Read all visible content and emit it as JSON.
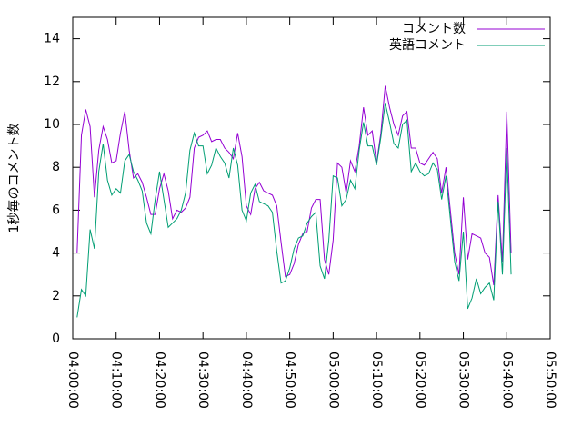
{
  "chart_data": {
    "type": "line",
    "y_label": "1秒毎のコメント数",
    "x": [
      "04:01:00",
      "04:02:00",
      "04:03:00",
      "04:04:00",
      "04:05:00",
      "04:06:00",
      "04:07:00",
      "04:08:00",
      "04:09:00",
      "04:10:00",
      "04:11:00",
      "04:12:00",
      "04:13:00",
      "04:14:00",
      "04:15:00",
      "04:16:00",
      "04:17:00",
      "04:18:00",
      "04:19:00",
      "04:20:00",
      "04:21:00",
      "04:22:00",
      "04:23:00",
      "04:24:00",
      "04:25:00",
      "04:26:00",
      "04:27:00",
      "04:28:00",
      "04:29:00",
      "04:30:00",
      "04:31:00",
      "04:32:00",
      "04:33:00",
      "04:34:00",
      "04:35:00",
      "04:36:00",
      "04:37:00",
      "04:38:00",
      "04:39:00",
      "04:40:00",
      "04:41:00",
      "04:42:00",
      "04:43:00",
      "04:44:00",
      "04:45:00",
      "04:46:00",
      "04:47:00",
      "04:48:00",
      "04:49:00",
      "04:50:00",
      "04:51:00",
      "04:52:00",
      "04:53:00",
      "04:54:00",
      "04:55:00",
      "04:56:00",
      "04:57:00",
      "04:58:00",
      "04:59:00",
      "05:00:00",
      "05:01:00",
      "05:02:00",
      "05:03:00",
      "05:04:00",
      "05:05:00",
      "05:06:00",
      "05:07:00",
      "05:08:00",
      "05:09:00",
      "05:10:00",
      "05:11:00",
      "05:12:00",
      "05:13:00",
      "05:14:00",
      "05:15:00",
      "05:16:00",
      "05:17:00",
      "05:18:00",
      "05:19:00",
      "05:20:00",
      "05:21:00",
      "05:22:00",
      "05:23:00",
      "05:24:00",
      "05:25:00",
      "05:26:00",
      "05:27:00",
      "05:28:00",
      "05:29:00",
      "05:30:00",
      "05:31:00",
      "05:32:00",
      "05:33:00",
      "05:34:00",
      "05:35:00",
      "05:36:00",
      "05:37:00",
      "05:38:00",
      "05:39:00",
      "05:40:00",
      "05:41:00"
    ],
    "series": [
      {
        "name": "コメント数",
        "color": "#9400d3",
        "values": [
          4.0,
          9.5,
          10.7,
          9.9,
          6.6,
          8.8,
          9.9,
          9.3,
          8.2,
          8.3,
          9.6,
          10.6,
          8.8,
          7.5,
          7.7,
          7.3,
          6.6,
          5.8,
          5.8,
          7.0,
          7.7,
          6.9,
          5.6,
          6.0,
          5.9,
          6.1,
          6.6,
          8.9,
          9.4,
          9.5,
          9.7,
          9.2,
          9.3,
          9.3,
          8.9,
          8.7,
          8.4,
          9.6,
          8.5,
          6.2,
          5.8,
          7.0,
          7.3,
          6.9,
          6.8,
          6.7,
          6.2,
          4.5,
          2.9,
          3.0,
          3.5,
          4.4,
          4.9,
          5.0,
          6.1,
          6.5,
          6.5,
          3.7,
          3.0,
          4.6,
          8.2,
          8.0,
          6.8,
          8.3,
          7.8,
          9.0,
          10.8,
          9.5,
          9.7,
          8.2,
          9.6,
          11.8,
          10.8,
          10.0,
          9.5,
          10.4,
          10.6,
          8.9,
          8.9,
          8.2,
          8.1,
          8.4,
          8.7,
          8.4,
          6.8,
          8.0,
          6.0,
          4.0,
          3.0,
          6.6,
          3.7,
          4.9,
          4.8,
          4.7,
          4.0,
          3.8,
          2.5,
          6.7,
          3.6,
          10.6,
          4.0
        ]
      },
      {
        "name": "英語コメント",
        "color": "#009e73",
        "values": [
          1.0,
          2.3,
          2.0,
          5.1,
          4.2,
          7.8,
          9.1,
          7.4,
          6.7,
          7.0,
          6.8,
          8.3,
          8.6,
          7.8,
          7.4,
          6.9,
          5.4,
          4.9,
          6.5,
          7.8,
          6.5,
          5.2,
          5.4,
          5.6,
          6.0,
          6.8,
          8.8,
          9.6,
          9.0,
          9.0,
          7.7,
          8.1,
          8.9,
          8.5,
          8.2,
          7.5,
          8.9,
          8.1,
          6.0,
          5.5,
          6.8,
          7.2,
          6.4,
          6.3,
          6.2,
          5.9,
          4.1,
          2.6,
          2.7,
          3.3,
          4.2,
          4.7,
          4.8,
          5.4,
          5.7,
          5.9,
          3.4,
          2.8,
          4.6,
          7.6,
          7.5,
          6.2,
          6.5,
          7.4,
          7.0,
          8.8,
          10.1,
          9.0,
          9.0,
          8.1,
          9.4,
          11.0,
          10.1,
          9.1,
          8.9,
          10.0,
          10.2,
          7.8,
          8.2,
          7.8,
          7.6,
          7.7,
          8.2,
          7.9,
          6.5,
          7.6,
          5.6,
          3.6,
          2.7,
          5.0,
          1.4,
          1.9,
          2.8,
          2.1,
          2.4,
          2.6,
          1.8,
          6.4,
          3.0,
          8.9,
          3.0
        ]
      }
    ],
    "xlim": [
      "04:00:00",
      "05:50:00"
    ],
    "xticks": [
      "04:00:00",
      "04:10:00",
      "04:20:00",
      "04:30:00",
      "04:40:00",
      "04:50:00",
      "05:00:00",
      "05:10:00",
      "05:20:00",
      "05:30:00",
      "05:40:00",
      "05:50:00"
    ],
    "ylim": [
      0,
      15
    ],
    "yticks": [
      0,
      2,
      4,
      6,
      8,
      10,
      12,
      14
    ],
    "legend": "top-right"
  }
}
